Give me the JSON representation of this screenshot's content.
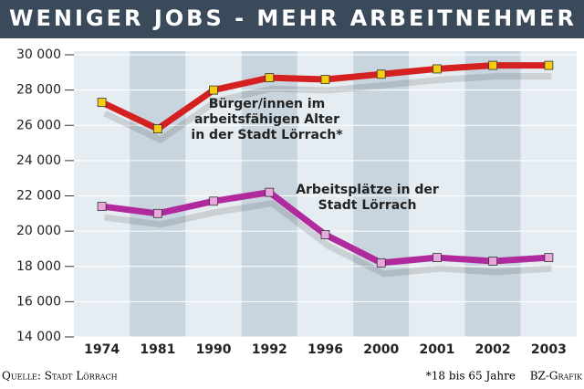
{
  "chart_data": {
    "type": "line",
    "title": "WENIGER JOBS - MEHR ARBEITNEHMER",
    "categories": [
      "1974",
      "1981",
      "1990",
      "1992",
      "1996",
      "2000",
      "2001",
      "2002",
      "2003"
    ],
    "series": [
      {
        "name": "Bürger/innen im\narbeitsfähigen Alter\nin der Stadt Lörrach*",
        "color": "#d42020",
        "marker_color": "#f4cc10",
        "values": [
          27300,
          25800,
          28000,
          28700,
          28600,
          28900,
          29200,
          29400,
          29400
        ]
      },
      {
        "name": "Arbeitsplätze in der\nStadt Lörrach",
        "color": "#b02a9e",
        "marker_color": "#e8a8de",
        "values": [
          21400,
          21000,
          21700,
          22200,
          19800,
          18200,
          18500,
          18300,
          18500
        ]
      }
    ],
    "ylim": [
      14000,
      30000
    ],
    "yticks": [
      {
        "value": 14000,
        "label": "14 000"
      },
      {
        "value": 16000,
        "label": "16 000"
      },
      {
        "value": 18000,
        "label": "18 000"
      },
      {
        "value": 20000,
        "label": "20 000"
      },
      {
        "value": 22000,
        "label": "22 000"
      },
      {
        "value": 24000,
        "label": "24 000"
      },
      {
        "value": 26000,
        "label": "26 000"
      },
      {
        "value": 28000,
        "label": "28 000"
      },
      {
        "value": 30000,
        "label": "30 000"
      }
    ],
    "grid": true,
    "source": "Quelle: Stadt Lörrach",
    "footnote": "*18 bis 65 Jahre",
    "credit": "BZ-Grafik"
  }
}
